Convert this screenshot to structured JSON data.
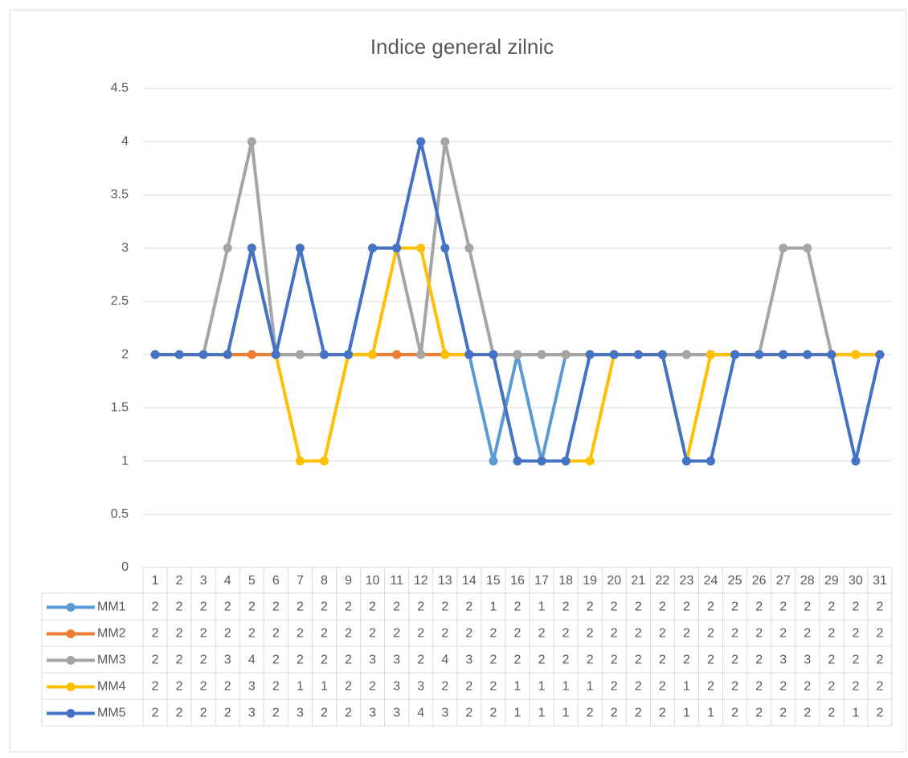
{
  "chart_data": {
    "type": "line",
    "title": "Indice general zilnic",
    "categories": [
      "1",
      "2",
      "3",
      "4",
      "5",
      "6",
      "7",
      "8",
      "9",
      "10",
      "11",
      "12",
      "13",
      "14",
      "15",
      "16",
      "17",
      "18",
      "19",
      "20",
      "21",
      "22",
      "23",
      "24",
      "25",
      "26",
      "27",
      "28",
      "29",
      "30",
      "31"
    ],
    "series": [
      {
        "name": "MM1",
        "color": "#5b9bd5",
        "values": [
          2,
          2,
          2,
          2,
          2,
          2,
          2,
          2,
          2,
          2,
          2,
          2,
          2,
          2,
          1,
          2,
          1,
          2,
          2,
          2,
          2,
          2,
          2,
          2,
          2,
          2,
          2,
          2,
          2,
          2,
          2
        ]
      },
      {
        "name": "MM2",
        "color": "#ed7d31",
        "values": [
          2,
          2,
          2,
          2,
          2,
          2,
          2,
          2,
          2,
          2,
          2,
          2,
          2,
          2,
          2,
          2,
          2,
          2,
          2,
          2,
          2,
          2,
          2,
          2,
          2,
          2,
          2,
          2,
          2,
          2,
          2
        ]
      },
      {
        "name": "MM3",
        "color": "#a5a5a5",
        "values": [
          2,
          2,
          2,
          3,
          4,
          2,
          2,
          2,
          2,
          3,
          3,
          2,
          4,
          3,
          2,
          2,
          2,
          2,
          2,
          2,
          2,
          2,
          2,
          2,
          2,
          2,
          3,
          3,
          2,
          2,
          2
        ]
      },
      {
        "name": "MM4",
        "color": "#ffc000",
        "values": [
          2,
          2,
          2,
          2,
          3,
          2,
          1,
          1,
          2,
          2,
          3,
          3,
          2,
          2,
          2,
          1,
          1,
          1,
          1,
          2,
          2,
          2,
          1,
          2,
          2,
          2,
          2,
          2,
          2,
          2,
          2
        ]
      },
      {
        "name": "MM5",
        "color": "#4472c4",
        "values": [
          2,
          2,
          2,
          2,
          3,
          2,
          3,
          2,
          2,
          3,
          3,
          4,
          3,
          2,
          2,
          1,
          1,
          1,
          2,
          2,
          2,
          2,
          1,
          1,
          2,
          2,
          2,
          2,
          2,
          1,
          2
        ]
      }
    ],
    "ylim": [
      0,
      4.5
    ],
    "yticks": [
      0,
      0.5,
      1,
      1.5,
      2,
      2.5,
      3,
      3.5,
      4,
      4.5
    ],
    "grid": true
  }
}
